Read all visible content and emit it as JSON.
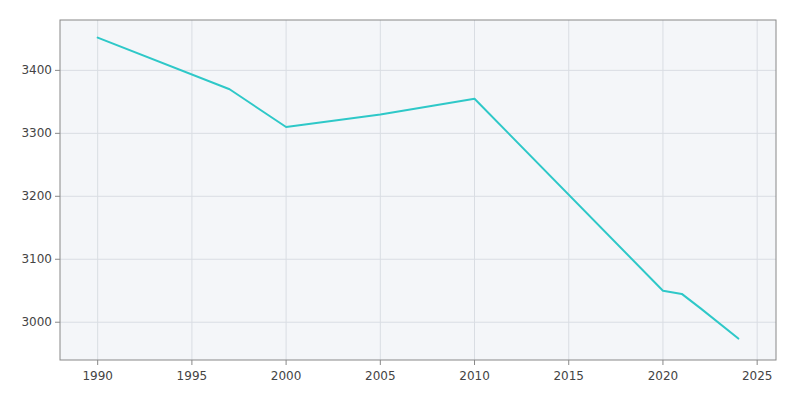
{
  "chart_data": {
    "type": "line",
    "x": [
      1990,
      1997,
      2000,
      2005,
      2010,
      2020,
      2021,
      2022,
      2024
    ],
    "values": [
      3452,
      3370,
      3310,
      3330,
      3355,
      3050,
      3045,
      3022,
      2974
    ],
    "color": "#2EC8C8",
    "xlim": [
      1988,
      2026
    ],
    "ylim": [
      2940,
      3480
    ],
    "xticks": [
      1990,
      1995,
      2000,
      2005,
      2010,
      2015,
      2020,
      2025
    ],
    "yticks": [
      3000,
      3100,
      3200,
      3300,
      3400
    ],
    "grid": true
  }
}
